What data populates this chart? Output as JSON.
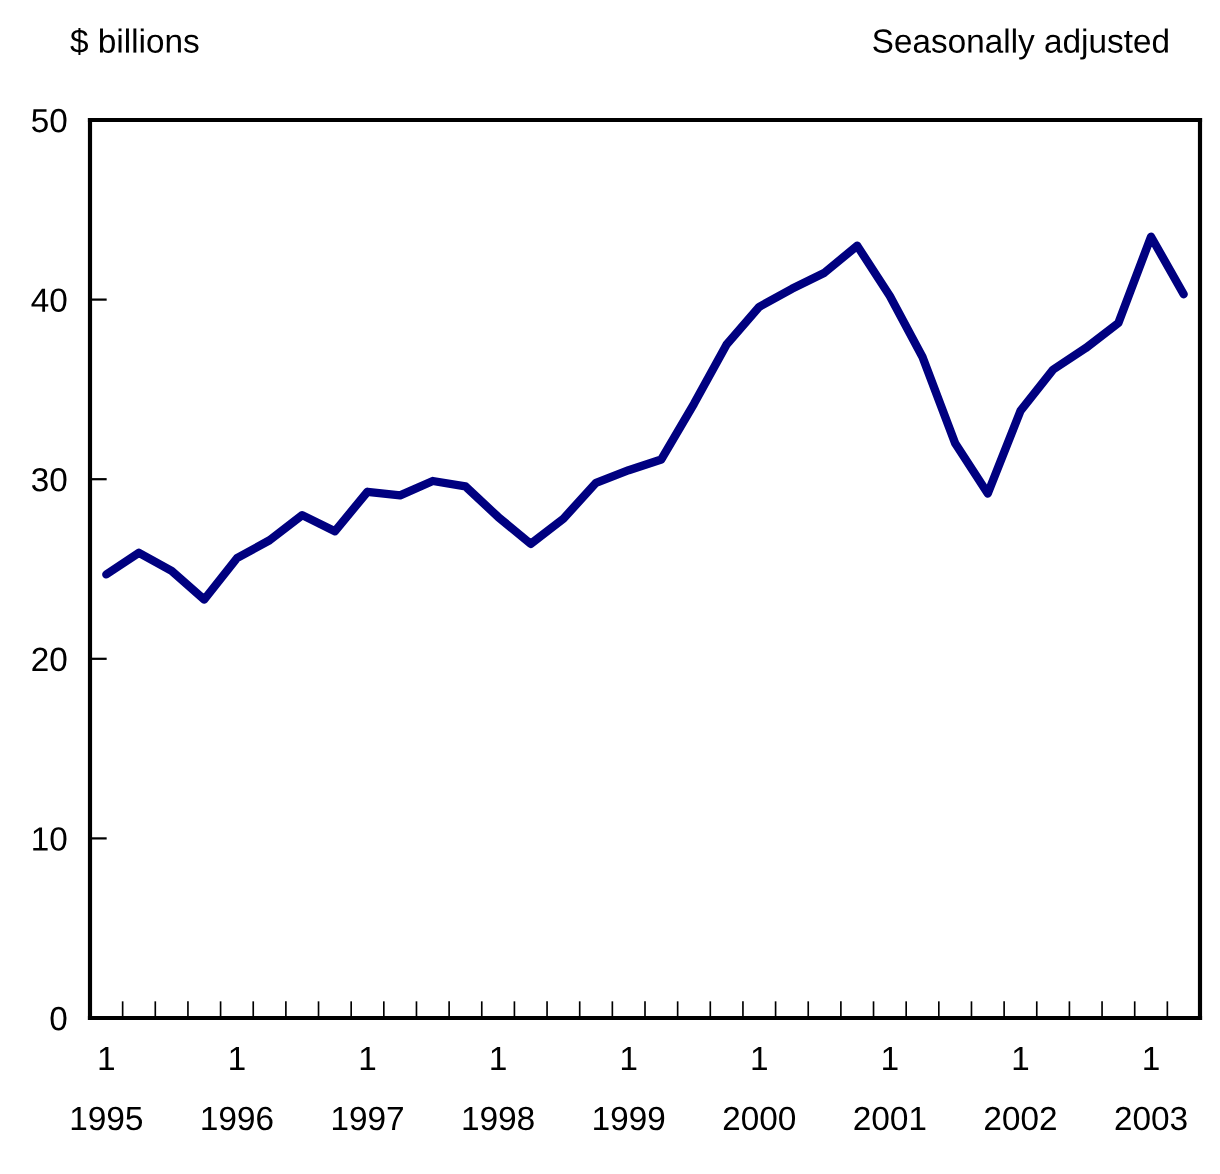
{
  "chart_data": {
    "type": "line",
    "categories": [
      "1\n1995",
      null,
      null,
      null,
      "1\n1996",
      null,
      null,
      null,
      "1\n1997",
      null,
      null,
      null,
      "1\n1998",
      null,
      null,
      null,
      "1\n1999",
      null,
      null,
      null,
      "1\n2000",
      null,
      null,
      null,
      "1\n2001",
      null,
      null,
      null,
      "1\n2002",
      null,
      null,
      null,
      "1\n2003",
      null
    ],
    "series": [
      {
        "color": "#000080",
        "values": [
          24.7,
          25.9,
          24.9,
          23.3,
          25.6,
          26.6,
          28.0,
          27.1,
          29.3,
          29.1,
          29.9,
          29.6,
          27.9,
          26.4,
          27.8,
          29.8,
          30.5,
          31.1,
          34.2,
          37.5,
          39.6,
          40.6,
          41.5,
          43.0,
          40.2,
          36.8,
          32.0,
          29.2,
          33.8,
          36.1,
          37.3,
          38.7,
          43.5,
          40.3
        ]
      }
    ],
    "ylim": [
      0,
      50
    ],
    "yticks": [
      0,
      10,
      20,
      30,
      40,
      50
    ],
    "annotations": [
      "$ billions",
      "Seasonally adjusted"
    ],
    "grid": false,
    "legend": false,
    "line_style": "solid",
    "marker": "none"
  }
}
